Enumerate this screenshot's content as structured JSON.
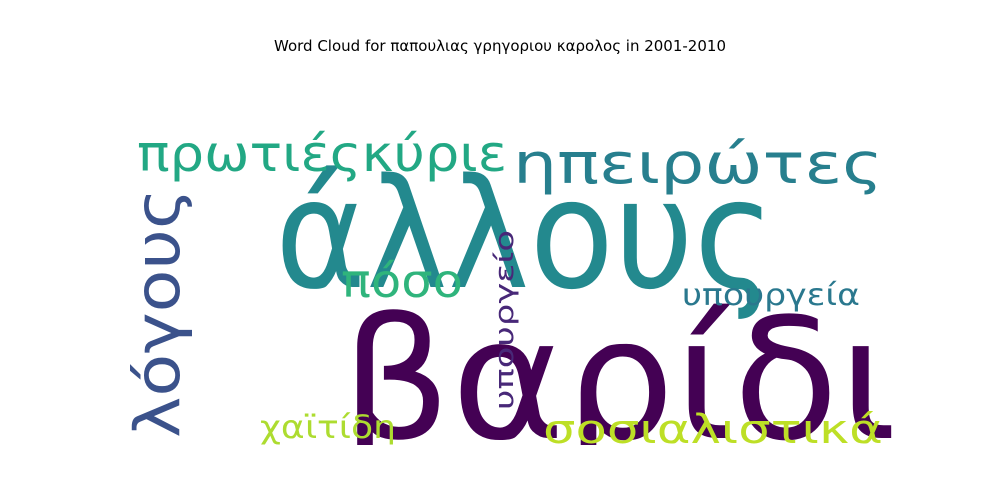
{
  "chart_data": {
    "type": "wordcloud",
    "title": "Word Cloud for παπουλιας γρηγοριου καρολος in 2001-2010",
    "words": [
      {
        "text": "άλλους",
        "weight": 1.0,
        "color": "#23898e",
        "orientation": "horizontal"
      },
      {
        "text": "βαρίδια",
        "weight": 0.98,
        "color": "#440154",
        "orientation": "horizontal"
      },
      {
        "text": "ηπειρώτες",
        "weight": 0.45,
        "color": "#277f8e",
        "orientation": "horizontal"
      },
      {
        "text": "πρωτιέςκύριε",
        "weight": 0.38,
        "color": "#22a884",
        "orientation": "horizontal"
      },
      {
        "text": "λόγους",
        "weight": 0.36,
        "color": "#3b528b",
        "orientation": "vertical"
      },
      {
        "text": "πόσο",
        "weight": 0.3,
        "color": "#2fb47c",
        "orientation": "horizontal"
      },
      {
        "text": "σοσιαλιστικά",
        "weight": 0.3,
        "color": "#bddf26",
        "orientation": "horizontal"
      },
      {
        "text": "υπουργεία",
        "weight": 0.22,
        "color": "#2a788e",
        "orientation": "horizontal"
      },
      {
        "text": "υπουργείο",
        "weight": 0.2,
        "color": "#482878",
        "orientation": "vertical"
      },
      {
        "text": "χαϊτίδη",
        "weight": 0.2,
        "color": "#addc30",
        "orientation": "horizontal"
      }
    ]
  }
}
